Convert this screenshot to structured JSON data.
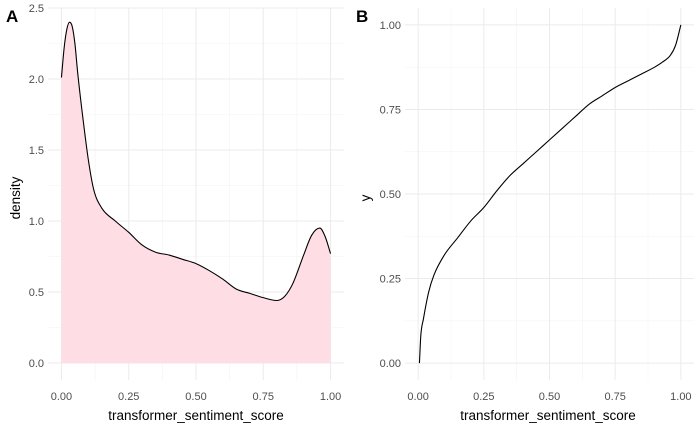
{
  "chart_data": [
    {
      "panel_label": "A",
      "type": "area",
      "xlabel": "transformer_sentiment_score",
      "ylabel": "density",
      "xlim": [
        -0.05,
        1.05
      ],
      "ylim": [
        -0.12,
        2.5
      ],
      "xticks": [
        0.0,
        0.25,
        0.5,
        0.75,
        1.0
      ],
      "xtick_labels": [
        "0.00",
        "0.25",
        "0.50",
        "0.75",
        "1.00"
      ],
      "yticks": [
        0.0,
        0.5,
        1.0,
        1.5,
        2.0,
        2.5
      ],
      "ytick_labels": [
        "0.0",
        "0.5",
        "1.0",
        "1.5",
        "2.0",
        "2.5"
      ],
      "grid": true,
      "fill_color": "#ffdde4",
      "line_color": "#000000",
      "x": [
        0.0,
        0.01,
        0.02,
        0.03,
        0.04,
        0.05,
        0.06,
        0.08,
        0.1,
        0.12,
        0.15,
        0.2,
        0.25,
        0.3,
        0.35,
        0.4,
        0.45,
        0.5,
        0.55,
        0.6,
        0.65,
        0.7,
        0.75,
        0.8,
        0.83,
        0.86,
        0.9,
        0.93,
        0.96,
        0.98,
        1.0
      ],
      "y": [
        2.01,
        2.22,
        2.35,
        2.4,
        2.37,
        2.25,
        2.05,
        1.72,
        1.43,
        1.22,
        1.09,
        1.0,
        0.92,
        0.83,
        0.78,
        0.76,
        0.73,
        0.7,
        0.65,
        0.59,
        0.52,
        0.49,
        0.46,
        0.44,
        0.47,
        0.56,
        0.76,
        0.9,
        0.95,
        0.89,
        0.77
      ]
    },
    {
      "panel_label": "B",
      "type": "line",
      "xlabel": "transformer_sentiment_score",
      "ylabel": "y",
      "xlim": [
        -0.05,
        1.05
      ],
      "ylim": [
        -0.05,
        1.05
      ],
      "xticks": [
        0.0,
        0.25,
        0.5,
        0.75,
        1.0
      ],
      "xtick_labels": [
        "0.00",
        "0.25",
        "0.50",
        "0.75",
        "1.00"
      ],
      "yticks": [
        0.0,
        0.25,
        0.5,
        0.75,
        1.0
      ],
      "ytick_labels": [
        "0.00",
        "0.25",
        "0.50",
        "0.75",
        "1.00"
      ],
      "grid": true,
      "line_color": "#000000",
      "x": [
        0.005,
        0.01,
        0.02,
        0.04,
        0.06,
        0.1,
        0.15,
        0.2,
        0.25,
        0.3,
        0.35,
        0.4,
        0.45,
        0.5,
        0.55,
        0.6,
        0.65,
        0.7,
        0.75,
        0.8,
        0.85,
        0.9,
        0.93,
        0.96,
        0.98,
        1.0
      ],
      "y": [
        0.0,
        0.08,
        0.13,
        0.21,
        0.26,
        0.32,
        0.37,
        0.42,
        0.46,
        0.51,
        0.555,
        0.59,
        0.625,
        0.66,
        0.695,
        0.73,
        0.765,
        0.79,
        0.815,
        0.835,
        0.855,
        0.875,
        0.89,
        0.91,
        0.94,
        1.0
      ]
    }
  ]
}
